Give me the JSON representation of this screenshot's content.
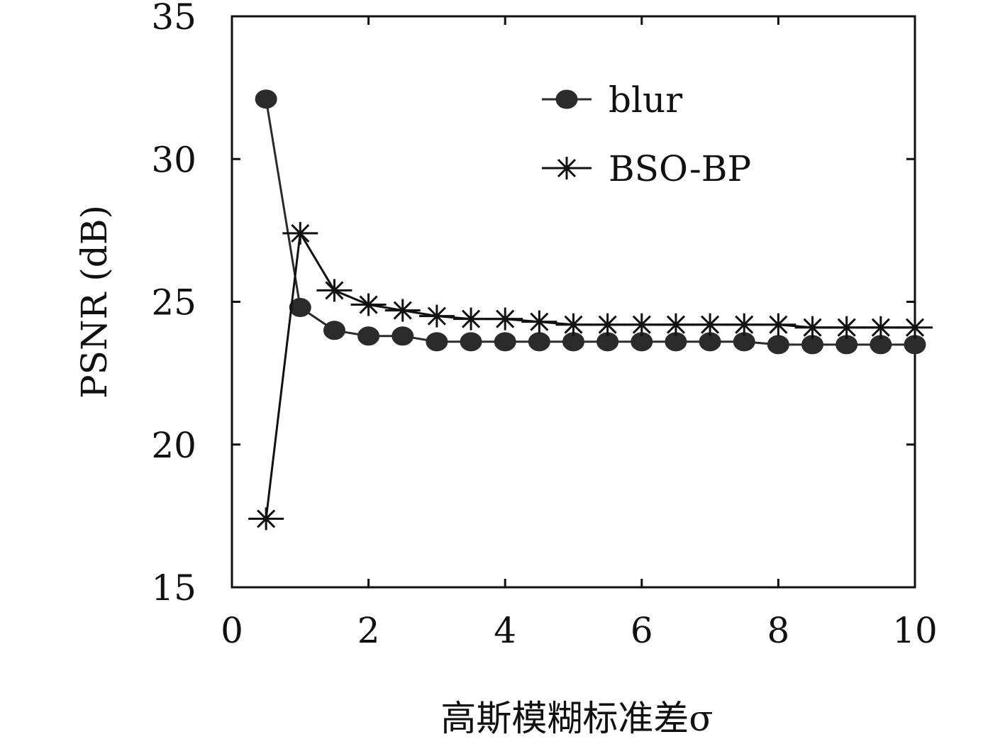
{
  "chart_data": {
    "type": "line",
    "xlabel": "高斯模糊标准差σ",
    "ylabel": "PSNR (dB)",
    "xlim": [
      0,
      10
    ],
    "ylim": [
      15,
      35
    ],
    "xticks": [
      0,
      2,
      4,
      6,
      8,
      10
    ],
    "yticks": [
      15,
      20,
      25,
      30,
      35
    ],
    "grid": false,
    "legend_position": "top-right",
    "x": [
      0.5,
      1.0,
      1.5,
      2.0,
      2.5,
      3.0,
      3.5,
      4.0,
      4.5,
      5.0,
      5.5,
      6.0,
      6.5,
      7.0,
      7.5,
      8.0,
      8.5,
      9.0,
      9.5,
      10.0
    ],
    "series": [
      {
        "name": "blur",
        "marker": "circle",
        "color": "#2b2b2b",
        "values": [
          32.1,
          24.8,
          24.0,
          23.8,
          23.8,
          23.6,
          23.6,
          23.6,
          23.6,
          23.6,
          23.6,
          23.6,
          23.6,
          23.6,
          23.6,
          23.5,
          23.5,
          23.5,
          23.5,
          23.5
        ]
      },
      {
        "name": "BSO-BP",
        "marker": "star",
        "color": "#111111",
        "values": [
          17.4,
          27.4,
          25.4,
          24.9,
          24.7,
          24.5,
          24.4,
          24.4,
          24.3,
          24.2,
          24.2,
          24.2,
          24.2,
          24.2,
          24.2,
          24.2,
          24.1,
          24.1,
          24.1,
          24.1
        ]
      }
    ]
  }
}
